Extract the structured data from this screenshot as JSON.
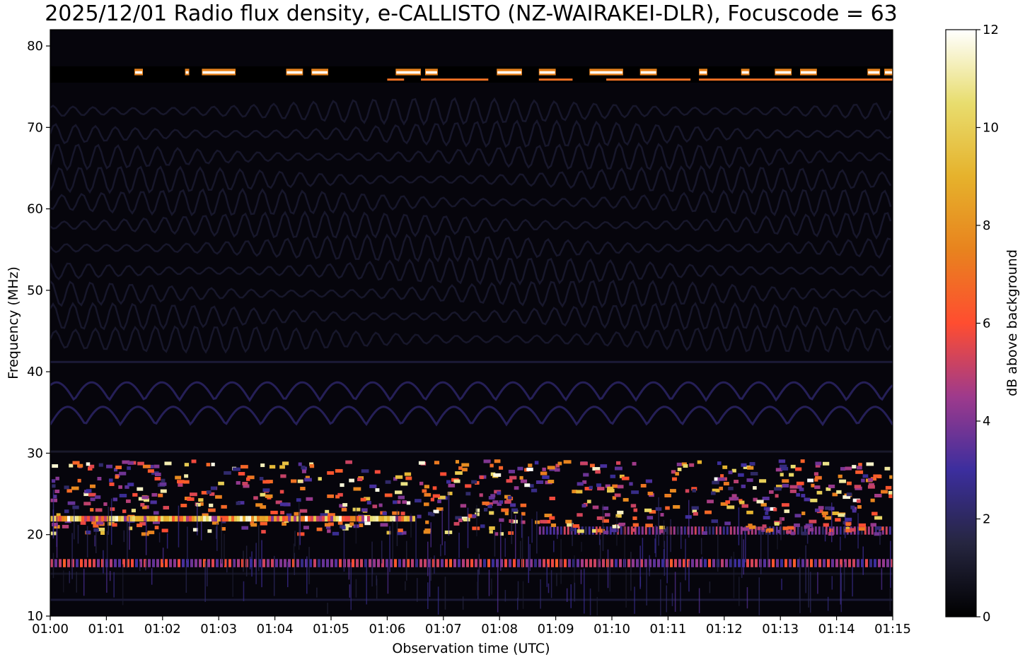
{
  "chart_data": {
    "type": "heatmap",
    "title": "2025/12/01 Radio flux density, e-CALLISTO (NZ-WAIRAKEI-DLR), Focuscode = 63",
    "xlabel": "Observation time (UTC)",
    "ylabel": "Frequency (MHz)",
    "x_ticks": [
      "01:00",
      "01:01",
      "01:02",
      "01:03",
      "01:04",
      "01:05",
      "01:06",
      "01:07",
      "01:08",
      "01:09",
      "01:10",
      "01:11",
      "01:12",
      "01:13",
      "01:14",
      "01:15"
    ],
    "xlim": [
      "01:00",
      "01:15"
    ],
    "y_ticks": [
      10,
      20,
      30,
      40,
      50,
      60,
      70,
      80
    ],
    "ylim": [
      10,
      82
    ],
    "colorbar": {
      "label": "dB above background",
      "ticks": [
        0,
        2,
        4,
        6,
        8,
        10,
        12
      ],
      "range": [
        0,
        12
      ],
      "colormap": "CMRmap"
    },
    "features": [
      {
        "freq_range_mhz": [
          75.5,
          77.5
        ],
        "desc": "intermittent strong RFI band, saturated bursts up to 12 dB"
      },
      {
        "freq_range_mhz": [
          20,
          29
        ],
        "desc": "bright patchy interference up to 10-12 dB"
      },
      {
        "freq_range_mhz": [
          16,
          17
        ],
        "desc": "persistent narrowband line ~5 dB"
      },
      {
        "freq_range_mhz": [
          30,
          82
        ],
        "desc": "faint wavy ripples ~1-2 dB"
      }
    ]
  }
}
